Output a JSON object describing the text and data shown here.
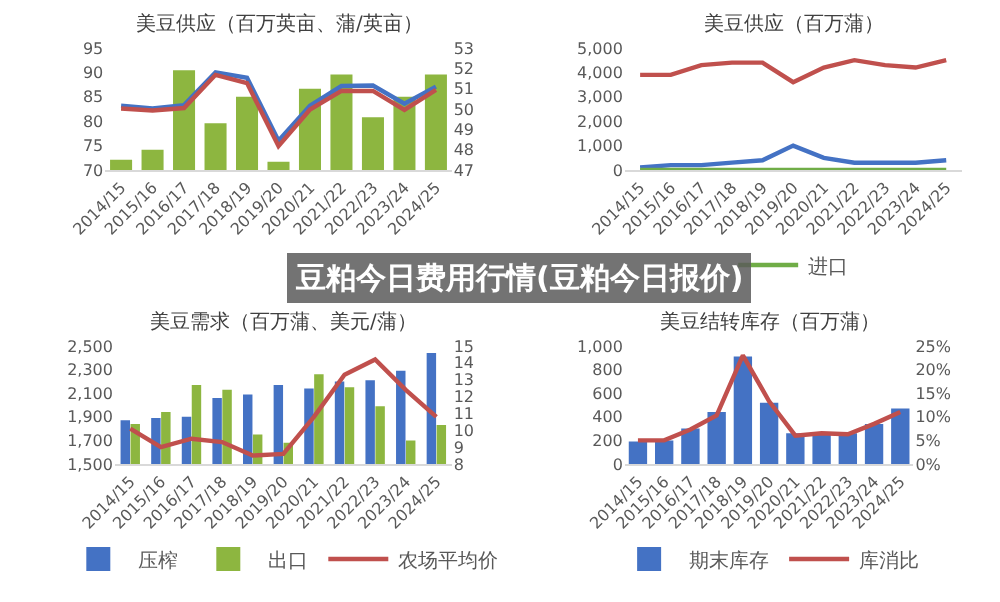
{
  "chart_data": [
    {
      "type": "bar",
      "title": "美豆供应（百万英亩、蒲/英亩）",
      "categories": [
        "2014/15",
        "2015/16",
        "2016/17",
        "2017/18",
        "2018/19",
        "2019/20",
        "2020/21",
        "2021/22",
        "2022/23",
        "2023/24",
        "2024/25"
      ],
      "series": [
        {
          "type": "bar",
          "axis": "y2",
          "color": "#8db640",
          "values": [
            47.5,
            48.0,
            51.9,
            49.3,
            50.6,
            47.4,
            51.0,
            51.7,
            49.6,
            50.6,
            51.7
          ]
        },
        {
          "type": "line",
          "color": "#4472c4",
          "values": [
            83.2,
            82.6,
            83.3,
            90.0,
            88.9,
            76.0,
            83.2,
            87.2,
            87.3,
            83.6,
            87.1
          ]
        },
        {
          "type": "line",
          "color": "#c0504d",
          "values": [
            82.6,
            82.2,
            82.7,
            89.5,
            87.8,
            74.9,
            82.4,
            86.2,
            86.2,
            82.3,
            86.4
          ]
        }
      ],
      "ylim": [
        70,
        95
      ],
      "yticks": [
        70,
        75,
        80,
        85,
        90,
        95
      ],
      "y2lim": [
        47,
        53
      ],
      "y2ticks": [
        47,
        48,
        49,
        50,
        51,
        52,
        53
      ]
    },
    {
      "type": "line",
      "title": "美豆供应（百万蒲）",
      "categories": [
        "2014/15",
        "2015/16",
        "2016/17",
        "2017/18",
        "2018/19",
        "2019/20",
        "2020/21",
        "2021/22",
        "2022/23",
        "2023/24",
        "2024/25"
      ],
      "series": [
        {
          "color": "#4472c4",
          "values": [
            100,
            200,
            200,
            300,
            400,
            1000,
            500,
            300,
            300,
            300,
            400
          ]
        },
        {
          "color": "#c0504d",
          "values": [
            3900,
            3900,
            4300,
            4400,
            4400,
            3600,
            4200,
            4500,
            4300,
            4200,
            4500
          ]
        },
        {
          "name": "进口",
          "color": "#70ad47",
          "values": [
            0,
            0,
            0,
            0,
            0,
            0,
            0,
            0,
            0,
            0,
            0
          ]
        }
      ],
      "ylim": [
        0,
        5000
      ],
      "yticks": [
        {
          "value": 0,
          "label": "0"
        },
        {
          "value": 1000,
          "label": "1,000"
        },
        {
          "value": 2000,
          "label": "2,000"
        },
        {
          "value": 3000,
          "label": "3,000"
        },
        {
          "value": 4000,
          "label": "4,000"
        },
        {
          "value": 5000,
          "label": "5,000"
        }
      ],
      "legend": "bottom"
    },
    {
      "type": "bar",
      "title": "美豆需求（百万蒲、美元/蒲）",
      "categories": [
        "2014/15",
        "2015/16",
        "2016/17",
        "2017/18",
        "2018/19",
        "2019/20",
        "2020/21",
        "2021/22",
        "2022/23",
        "2023/24",
        "2024/25"
      ],
      "series": [
        {
          "name": "压榨",
          "type": "bar",
          "color": "#4472c4",
          "values": [
            1870,
            1890,
            1900,
            2060,
            2090,
            2170,
            2140,
            2200,
            2210,
            2290,
            2440
          ]
        },
        {
          "name": "出口",
          "type": "bar",
          "color": "#8db640",
          "values": [
            1840,
            1940,
            2170,
            2130,
            1750,
            1680,
            2260,
            2150,
            1990,
            1700,
            1830
          ]
        },
        {
          "name": "农场平均价",
          "type": "line",
          "axis": "y2",
          "color": "#c0504d",
          "values": [
            10.1,
            9.0,
            9.5,
            9.3,
            8.5,
            8.6,
            10.8,
            13.3,
            14.2,
            12.4,
            10.8
          ]
        }
      ],
      "ylim": [
        1500,
        2500
      ],
      "yticks": [
        {
          "value": 1500,
          "label": "1,500"
        },
        {
          "value": 1700,
          "label": "1,700"
        },
        {
          "value": 1900,
          "label": "1,900"
        },
        {
          "value": 2100,
          "label": "2,100"
        },
        {
          "value": 2300,
          "label": "2,300"
        },
        {
          "value": 2500,
          "label": "2,500"
        }
      ],
      "y2lim": [
        8,
        15
      ],
      "y2ticks": [
        8,
        9,
        10,
        11,
        12,
        13,
        14,
        15
      ],
      "legend": "bottom"
    },
    {
      "type": "bar",
      "title": "美豆结转库存（百万蒲）",
      "categories": [
        "2014/15",
        "2015/16",
        "2016/17",
        "2017/18",
        "2018/19",
        "2019/20",
        "2020/21",
        "2021/22",
        "2022/23",
        "2023/24",
        "2024/25"
      ],
      "series": [
        {
          "name": "期末库存",
          "type": "bar",
          "color": "#4472c4",
          "values": [
            190,
            200,
            300,
            440,
            910,
            520,
            260,
            270,
            260,
            340,
            470
          ]
        },
        {
          "name": "库消比",
          "type": "line",
          "axis": "y2",
          "color": "#c0504d",
          "values": [
            5.0,
            5.0,
            7.3,
            10.3,
            23.0,
            13.3,
            6.0,
            6.5,
            6.3,
            8.5,
            11.0
          ]
        }
      ],
      "ylim": [
        0,
        1000
      ],
      "yticks": [
        0,
        200,
        400,
        600,
        800,
        {
          "value": 1000,
          "label": "1,000"
        }
      ],
      "y2lim": [
        0,
        25
      ],
      "y2ticks": [
        {
          "value": 0,
          "label": "0%"
        },
        {
          "value": 5,
          "label": "5%"
        },
        {
          "value": 10,
          "label": "10%"
        },
        {
          "value": 15,
          "label": "15%"
        },
        {
          "value": 20,
          "label": "20%"
        },
        {
          "value": 25,
          "label": "25%"
        }
      ],
      "legend": "bottom"
    },
    {
      "type": "other",
      "title": "豆粕今日费用行情(豆粕今日报价)"
    }
  ]
}
